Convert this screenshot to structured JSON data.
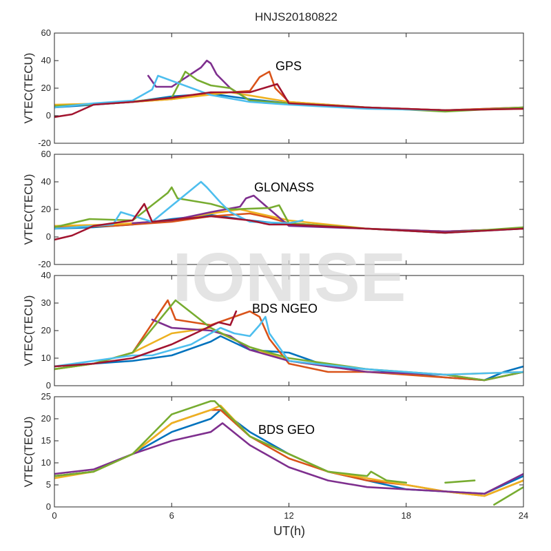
{
  "figure": {
    "title": "HNJS20180822",
    "watermark": "IONISE",
    "xlabel": "UT(h)",
    "xlim": [
      0,
      24
    ],
    "xticks": [
      0,
      6,
      12,
      18,
      24
    ]
  },
  "chart_data": [
    {
      "type": "line",
      "annotation": "GPS",
      "ylabel": "VTEC(TECU)",
      "ylim": [
        -20,
        60
      ],
      "yticks": [
        -20,
        0,
        20,
        40,
        60
      ],
      "xlim": [
        0,
        24
      ],
      "series": [
        {
          "color": "#0072BD",
          "x": [
            0,
            2,
            4,
            6,
            8,
            10,
            12,
            16,
            20,
            24
          ],
          "y": [
            6,
            8,
            10,
            14,
            16,
            12,
            9,
            6,
            4,
            6
          ]
        },
        {
          "color": "#D95319",
          "x": [
            0,
            3,
            6,
            8,
            10,
            10.5,
            11,
            11.3,
            12,
            16,
            20,
            24
          ],
          "y": [
            7,
            9,
            12,
            16,
            18,
            28,
            32,
            20,
            10,
            6,
            4,
            6
          ]
        },
        {
          "color": "#EDB120",
          "x": [
            0,
            3,
            6,
            9,
            12,
            16,
            20,
            24
          ],
          "y": [
            8,
            9,
            12,
            17,
            10,
            6,
            4,
            5
          ]
        },
        {
          "color": "#7E2F8E",
          "x": [
            4.8,
            5.2,
            6,
            7.5,
            7.8,
            8,
            8.3,
            9,
            10,
            12
          ],
          "y": [
            29,
            21,
            21,
            35,
            40,
            38,
            30,
            20,
            11,
            9
          ]
        },
        {
          "color": "#77AC30",
          "x": [
            0,
            3,
            6,
            6.7,
            7.3,
            8,
            9,
            10,
            12,
            16,
            20,
            24
          ],
          "y": [
            7,
            9,
            13,
            32,
            26,
            22,
            20,
            11,
            9,
            6,
            3,
            6
          ]
        },
        {
          "color": "#4DBEEE",
          "x": [
            0,
            2,
            4,
            5,
            5.3,
            8,
            10,
            12,
            16,
            20
          ],
          "y": [
            6,
            9,
            11,
            19,
            29,
            15,
            10,
            8,
            5,
            4
          ]
        },
        {
          "color": "#A2142F",
          "x": [
            0,
            0.9,
            2,
            4,
            6,
            8,
            10,
            11.4,
            12,
            16,
            20,
            24
          ],
          "y": [
            -1,
            1,
            8,
            10,
            13,
            17,
            17,
            23,
            9,
            6,
            4,
            5
          ]
        }
      ]
    },
    {
      "type": "line",
      "annotation": "GLONASS",
      "ylabel": "VTEC(TECU)",
      "ylim": [
        -20,
        60
      ],
      "yticks": [
        -20,
        0,
        20,
        40,
        60
      ],
      "xlim": [
        0,
        24
      ],
      "series": [
        {
          "color": "#0072BD",
          "x": [
            0,
            2,
            4,
            6,
            8,
            10,
            12,
            16,
            20,
            24
          ],
          "y": [
            6,
            7,
            9,
            13,
            16,
            12,
            9,
            6,
            3,
            6
          ]
        },
        {
          "color": "#D95319",
          "x": [
            0,
            3,
            6,
            8,
            10,
            11,
            12,
            16,
            20,
            24
          ],
          "y": [
            7,
            8,
            11,
            15,
            17,
            14,
            10,
            6,
            4,
            6
          ]
        },
        {
          "color": "#EDB120",
          "x": [
            0,
            3,
            6,
            8,
            9.5,
            12,
            16,
            20,
            24
          ],
          "y": [
            8,
            9,
            12,
            17,
            20,
            12,
            6,
            4,
            6
          ]
        },
        {
          "color": "#7E2F8E",
          "x": [
            4,
            6,
            8,
            9.5,
            9.8,
            10.2,
            12,
            16,
            20,
            24
          ],
          "y": [
            10,
            12,
            18,
            22,
            28,
            30,
            8,
            6,
            4,
            6
          ]
        },
        {
          "color": "#77AC30",
          "x": [
            0,
            1.8,
            4,
            5.8,
            6,
            6.3,
            8,
            9,
            11,
            11.5,
            12,
            16,
            20,
            24
          ],
          "y": [
            7,
            13,
            12,
            32,
            36,
            28,
            24,
            20,
            21,
            23,
            10,
            6,
            3,
            7
          ]
        },
        {
          "color": "#4DBEEE",
          "x": [
            0,
            3,
            3.4,
            5,
            7.5,
            7.8,
            8.5,
            9,
            10,
            12,
            12.7
          ],
          "y": [
            6,
            9,
            18,
            11,
            40,
            36,
            25,
            18,
            11,
            10,
            12
          ]
        },
        {
          "color": "#A2142F",
          "x": [
            0,
            0.9,
            2,
            4,
            4.6,
            5,
            8,
            10,
            11,
            12,
            16,
            20,
            24
          ],
          "y": [
            -2,
            1,
            8,
            12,
            24,
            11,
            15,
            12,
            9,
            9,
            6,
            3,
            6
          ]
        }
      ]
    },
    {
      "type": "line",
      "annotation": "BDS NGEO",
      "ylabel": "VTEC(TECU)",
      "ylim": [
        0,
        40
      ],
      "yticks": [
        0,
        10,
        20,
        30,
        40
      ],
      "xlim": [
        0,
        24
      ],
      "series": [
        {
          "color": "#0072BD",
          "x": [
            0,
            2,
            4,
            6,
            8,
            8.5,
            10,
            12,
            14,
            16,
            20,
            22,
            23,
            24
          ],
          "y": [
            7,
            8,
            9,
            11,
            16,
            18,
            13,
            12,
            7,
            6,
            3,
            2,
            5,
            7
          ]
        },
        {
          "color": "#D95319",
          "x": [
            0,
            2,
            4,
            5.8,
            6.2,
            8,
            10,
            10.5,
            11,
            12,
            14,
            16,
            20,
            22,
            24
          ],
          "y": [
            6,
            8,
            12,
            31,
            24,
            22,
            27,
            25,
            17,
            8,
            5,
            5,
            3,
            2,
            5
          ]
        },
        {
          "color": "#EDB120",
          "x": [
            0,
            2,
            4,
            6,
            8,
            8.5,
            10,
            12,
            16,
            20,
            24
          ],
          "y": [
            6,
            8,
            12,
            19,
            21,
            19,
            14,
            9,
            5,
            4,
            5
          ]
        },
        {
          "color": "#7E2F8E",
          "x": [
            5,
            6,
            8,
            9,
            10,
            12,
            16,
            20,
            22,
            24
          ],
          "y": [
            24,
            21,
            20,
            18,
            13,
            9,
            5,
            4,
            2,
            5
          ]
        },
        {
          "color": "#77AC30",
          "x": [
            0,
            2,
            4,
            6.2,
            8,
            10,
            12,
            16,
            20,
            22,
            24
          ],
          "y": [
            6,
            8,
            12,
            31,
            21,
            14,
            10,
            6,
            4,
            2,
            5
          ]
        },
        {
          "color": "#4DBEEE",
          "x": [
            0,
            2,
            4,
            5,
            7,
            8.5,
            9.2,
            10,
            10.5,
            10.8,
            11,
            12,
            16,
            20,
            24
          ],
          "y": [
            7,
            9,
            11,
            11,
            15,
            21,
            19,
            18,
            22,
            25,
            19,
            9,
            6,
            4,
            5
          ]
        },
        {
          "color": "#A2142F",
          "x": [
            0,
            2,
            4,
            6,
            7.5,
            8.4,
            9,
            9.3
          ],
          "y": [
            7,
            8,
            10,
            15,
            20,
            23,
            22,
            27
          ]
        }
      ]
    },
    {
      "type": "line",
      "annotation": "BDS GEO",
      "ylabel": "VTEC(TECU)",
      "ylim": [
        0,
        25
      ],
      "yticks": [
        0,
        5,
        10,
        15,
        20,
        25
      ],
      "xlim": [
        0,
        24
      ],
      "series": [
        {
          "color": "#0072BD",
          "x": [
            0,
            2,
            4,
            6,
            8,
            8.5,
            10,
            12,
            14,
            16,
            18,
            20,
            22,
            24
          ],
          "y": [
            7,
            8,
            12,
            17,
            20,
            22,
            17,
            12,
            8,
            6,
            4,
            3.5,
            3,
            7
          ]
        },
        {
          "color": "#D95319",
          "x": [
            0,
            2,
            4,
            6,
            8,
            8.5,
            10,
            12,
            14,
            16,
            18,
            20,
            22,
            24
          ],
          "y": [
            7,
            8,
            12,
            19,
            22,
            22,
            16,
            11,
            8,
            6,
            5,
            3.5,
            2.5,
            6
          ]
        },
        {
          "color": "#EDB120",
          "x": [
            0,
            2,
            4,
            6,
            8,
            8.5,
            10,
            12,
            14,
            16,
            18,
            20,
            22,
            24
          ],
          "y": [
            6.5,
            8,
            12,
            19,
            22,
            23,
            16,
            12,
            8,
            6.5,
            5,
            3.5,
            2.5,
            6
          ]
        },
        {
          "color": "#7E2F8E",
          "x": [
            0,
            2,
            4,
            6,
            8,
            8.6,
            10,
            12,
            14,
            16,
            18,
            20,
            22,
            24
          ],
          "y": [
            7.5,
            8.5,
            12,
            15,
            17,
            19,
            14,
            9,
            6,
            4.5,
            4,
            3.5,
            3,
            7.5
          ]
        },
        {
          "color": "#77AC30",
          "x": [
            0,
            2,
            4,
            6,
            8,
            8.2,
            10,
            12,
            14,
            16,
            16.2,
            17,
            18
          ],
          "y": [
            7,
            8,
            12,
            21,
            24,
            24,
            16,
            12,
            8,
            7,
            8,
            6,
            5.5
          ]
        },
        {
          "color": "#77AC30",
          "x": [
            22.5,
            24
          ],
          "y": [
            0.5,
            4.5
          ]
        },
        {
          "color": "#77AC30",
          "x": [
            20,
            21.5
          ],
          "y": [
            5.5,
            6
          ]
        }
      ]
    }
  ]
}
